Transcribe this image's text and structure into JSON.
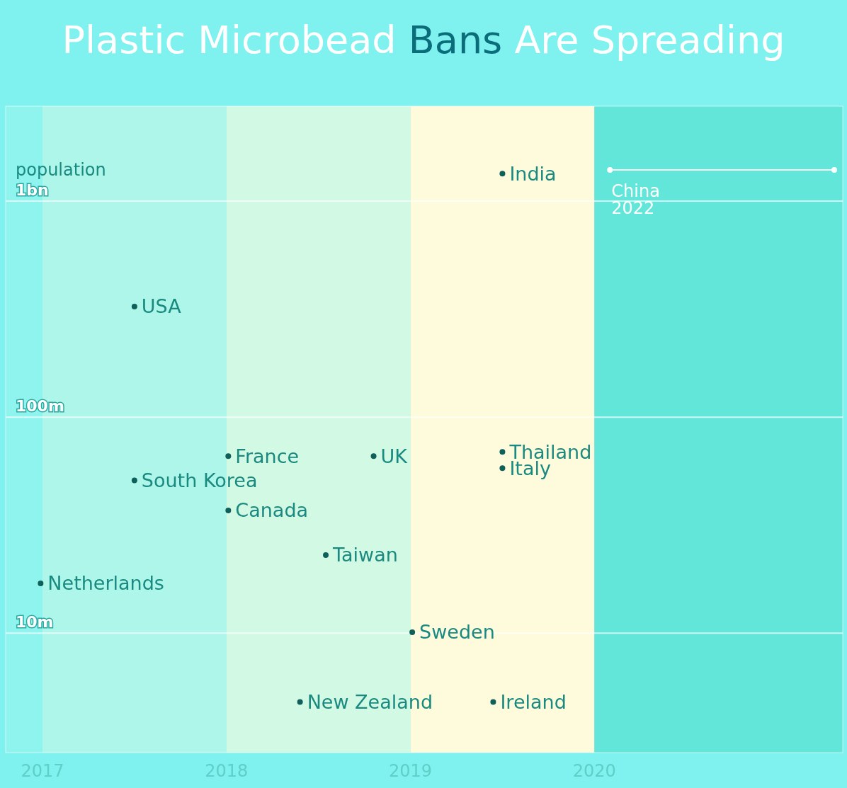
{
  "chart_data": {
    "type": "scatter",
    "title": "Plastic Microbead Bans Are Spreading",
    "ylabel": "population",
    "x": [
      2019.5,
      2017.5,
      2018.01,
      2017.5,
      2018.01,
      2018.8,
      2018.54,
      2016.99,
      2019.01,
      2018.4,
      2019.45,
      2019.5,
      2019.5
    ],
    "series": [
      {
        "color": "#0f5f5a",
        "values": [
          1340000000,
          325000000,
          66000000,
          51000000,
          37000000,
          66000000,
          23000000,
          17000000,
          10100000,
          4800000,
          4800000,
          69000000,
          58000000
        ]
      }
    ],
    "annotations": [
      {
        "text": "India",
        "x": 2019.5,
        "y": 1340000000
      },
      {
        "text": "USA",
        "x": 2017.5,
        "y": 325000000
      },
      {
        "text": "France",
        "x": 2018.01,
        "y": 66000000
      },
      {
        "text": "South Korea",
        "x": 2017.5,
        "y": 51000000
      },
      {
        "text": "Canada",
        "x": 2018.01,
        "y": 37000000
      },
      {
        "text": "UK",
        "x": 2018.8,
        "y": 66000000
      },
      {
        "text": "Taiwan",
        "x": 2018.54,
        "y": 23000000
      },
      {
        "text": "Netherlands",
        "x": 2016.99,
        "y": 17000000
      },
      {
        "text": "Sweden",
        "x": 2019.01,
        "y": 10100000
      },
      {
        "text": "New Zealand",
        "x": 2018.4,
        "y": 4800000
      },
      {
        "text": "Ireland",
        "x": 2019.45,
        "y": 4800000
      },
      {
        "text": "Thailand",
        "x": 2019.5,
        "y": 69000000
      },
      {
        "text": "Italy",
        "x": 2019.5,
        "y": 58000000
      }
    ],
    "bands": [
      {
        "axis": "x",
        "from": 2016.8,
        "to": 2017,
        "color": "#8ff4ee"
      },
      {
        "axis": "x",
        "from": 2017,
        "to": 2018,
        "color": "#aef6ea"
      },
      {
        "axis": "x",
        "from": 2018,
        "to": 2019,
        "color": "#d2f9e4"
      },
      {
        "axis": "x",
        "from": 2019,
        "to": 2020,
        "color": "#fdfbdc"
      },
      {
        "axis": "x",
        "from": 2020,
        "to": 2021.35,
        "color": "#62e6da",
        "label": "China 2022"
      }
    ],
    "xlim": [
      2016.8,
      2021.35
    ],
    "xticks": [
      2017,
      2018,
      2019,
      2020
    ],
    "ylim": [
      2800000,
      2750000000
    ],
    "yticks": [
      {
        "value": 10000000,
        "label": "10m"
      },
      {
        "value": 100000000,
        "label": "100m"
      },
      {
        "value": 1000000000,
        "label": "1bn"
      }
    ],
    "log": "y",
    "grid": "y",
    "marker": "circle"
  }
}
